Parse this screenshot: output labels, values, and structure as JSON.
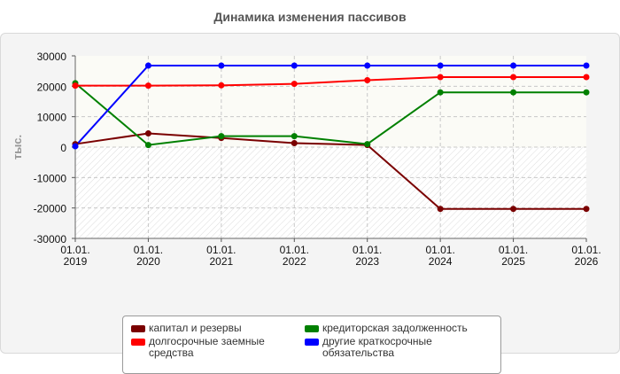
{
  "chart_data": {
    "type": "line",
    "title": "Динамика изменения пассивов",
    "ylabel": "тыс.",
    "xlabel": "",
    "ylim": [
      -30000,
      30000
    ],
    "yticks": [
      30000,
      20000,
      10000,
      0,
      -10000,
      -20000,
      -30000
    ],
    "categories": [
      {
        "line1": "01.01.",
        "line2": "2019"
      },
      {
        "line1": "01.01.",
        "line2": "2020"
      },
      {
        "line1": "01.01.",
        "line2": "2021"
      },
      {
        "line1": "01.01.",
        "line2": "2022"
      },
      {
        "line1": "01.01.",
        "line2": "2023"
      },
      {
        "line1": "01.01.",
        "line2": "2024"
      },
      {
        "line1": "01.01.",
        "line2": "2025"
      },
      {
        "line1": "01.01.",
        "line2": "2026"
      }
    ],
    "grid": true,
    "legend_position": "bottom",
    "series": [
      {
        "name": "капитал и резервы",
        "color": "#7a0000",
        "values": [
          1000,
          4500,
          3000,
          1300,
          700,
          -20300,
          -20300,
          -20300
        ]
      },
      {
        "name": "кредиторская задолженность",
        "color": "#008000",
        "values": [
          21000,
          700,
          3600,
          3600,
          1000,
          18000,
          18000,
          18000
        ]
      },
      {
        "name": "долгосрочные заемные средства",
        "color": "#ff0000",
        "values": [
          20200,
          20200,
          20300,
          20800,
          22000,
          23000,
          23000,
          23000
        ]
      },
      {
        "name": "другие краткосрочные обязательства",
        "color": "#0000ff",
        "values": [
          300,
          26800,
          26800,
          26800,
          26800,
          26800,
          26800,
          26800
        ]
      }
    ]
  }
}
